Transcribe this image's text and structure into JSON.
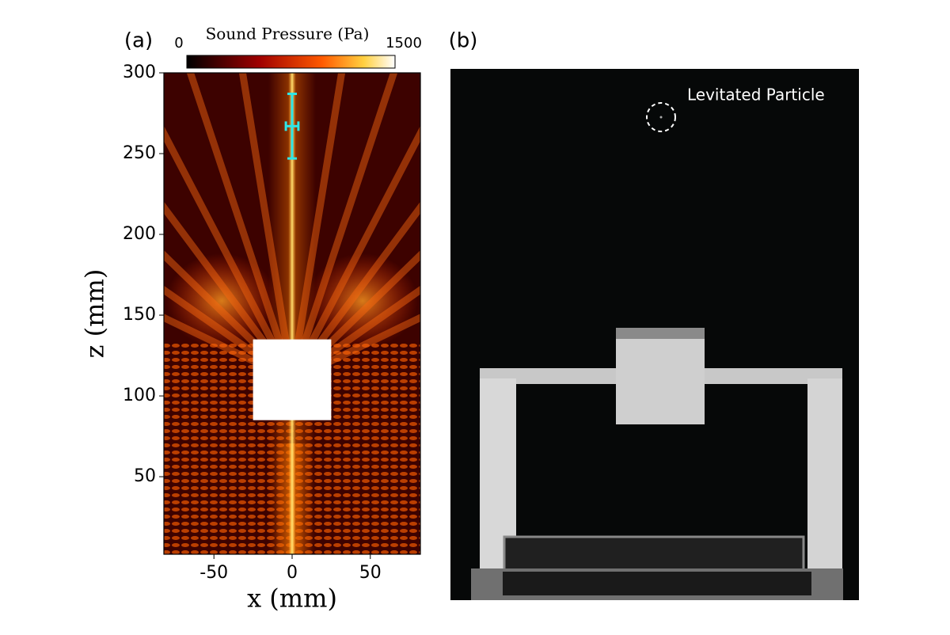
{
  "chart_data": {
    "type": "heatmap",
    "panel_label": "(a)",
    "colorbar": {
      "label": "Sound  Pressure (Pa)",
      "min": 0,
      "max": 1500
    },
    "xlabel": "x (mm)",
    "ylabel": "z (mm)",
    "xlim": [
      -82,
      82
    ],
    "ylim": [
      2,
      300
    ],
    "xticks": [
      -50,
      0,
      50
    ],
    "yticks": [
      50,
      100,
      150,
      200,
      250,
      300
    ],
    "obstacle": {
      "x": [
        -25,
        25
      ],
      "z": [
        85,
        135
      ]
    },
    "errorbar": {
      "x": 0,
      "y": 267,
      "xerr": 4,
      "yerr": 20,
      "color": "#2ee6e6"
    }
  },
  "photo": {
    "panel_label": "(b)",
    "annotation": "Levitated Particle"
  }
}
